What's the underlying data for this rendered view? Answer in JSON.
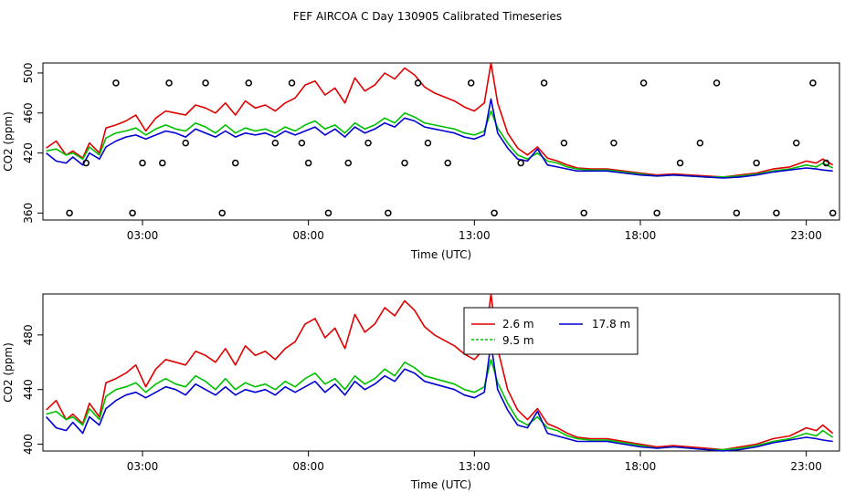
{
  "title": "FEF AIRCOA C  Day 130905  Calibrated Timeseries",
  "chart_data": [
    {
      "type": "line",
      "xlabel": "Time (UTC)",
      "ylabel": "CO2 (ppm)",
      "xlim": [
        0,
        24
      ],
      "ylim": [
        353,
        510
      ],
      "x_ticks": [
        3,
        8,
        13,
        18,
        23
      ],
      "x_tick_labels": [
        "03:00",
        "08:00",
        "13:00",
        "18:00",
        "23:00"
      ],
      "y_ticks": [
        360,
        420,
        460,
        500
      ],
      "y_tick_labels": [
        "360",
        "420",
        "460",
        "500"
      ],
      "grid": false,
      "legend": "none",
      "series": [
        {
          "color": "#e00000",
          "x": [
            0.1,
            0.4,
            0.7,
            0.9,
            1.2,
            1.4,
            1.7,
            1.9,
            2.2,
            2.5,
            2.8,
            3.1,
            3.4,
            3.7,
            4.0,
            4.3,
            4.6,
            4.9,
            5.2,
            5.5,
            5.8,
            6.1,
            6.4,
            6.7,
            7.0,
            7.3,
            7.6,
            7.9,
            8.2,
            8.5,
            8.8,
            9.1,
            9.4,
            9.7,
            10.0,
            10.3,
            10.6,
            10.9,
            11.2,
            11.5,
            11.8,
            12.1,
            12.4,
            12.7,
            13.0,
            13.3,
            13.5,
            13.7,
            14.0,
            14.3,
            14.6,
            14.9,
            15.2,
            15.5,
            15.8,
            16.1,
            16.5,
            17.0,
            17.5,
            18.0,
            18.5,
            19.0,
            19.5,
            20.0,
            20.5,
            21.0,
            21.5,
            22.0,
            22.5,
            23.0,
            23.3,
            23.5,
            23.8
          ],
          "y": [
            425,
            432,
            418,
            422,
            415,
            430,
            420,
            445,
            448,
            452,
            458,
            442,
            455,
            462,
            460,
            458,
            468,
            465,
            460,
            470,
            458,
            472,
            465,
            468,
            462,
            470,
            475,
            488,
            492,
            478,
            485,
            470,
            495,
            482,
            488,
            500,
            494,
            505,
            498,
            486,
            480,
            476,
            472,
            466,
            462,
            470,
            510,
            470,
            440,
            425,
            418,
            426,
            415,
            412,
            408,
            405,
            404,
            404,
            402,
            400,
            398,
            399,
            398,
            397,
            396,
            398,
            400,
            404,
            406,
            412,
            410,
            414,
            408
          ]
        },
        {
          "color": "#00c000",
          "x": [
            0.1,
            0.4,
            0.7,
            0.9,
            1.2,
            1.4,
            1.7,
            1.9,
            2.2,
            2.5,
            2.8,
            3.1,
            3.4,
            3.7,
            4.0,
            4.3,
            4.6,
            4.9,
            5.2,
            5.5,
            5.8,
            6.1,
            6.4,
            6.7,
            7.0,
            7.3,
            7.6,
            7.9,
            8.2,
            8.5,
            8.8,
            9.1,
            9.4,
            9.7,
            10.0,
            10.3,
            10.6,
            10.9,
            11.2,
            11.5,
            11.8,
            12.1,
            12.4,
            12.7,
            13.0,
            13.3,
            13.5,
            13.7,
            14.0,
            14.3,
            14.6,
            14.9,
            15.2,
            15.5,
            15.8,
            16.1,
            16.5,
            17.0,
            17.5,
            18.0,
            18.5,
            19.0,
            19.5,
            20.0,
            20.5,
            21.0,
            21.5,
            22.0,
            22.5,
            23.0,
            23.3,
            23.5,
            23.8
          ],
          "y": [
            422,
            424,
            418,
            420,
            414,
            426,
            418,
            435,
            440,
            442,
            445,
            438,
            444,
            448,
            444,
            442,
            450,
            446,
            440,
            448,
            440,
            445,
            442,
            444,
            440,
            446,
            442,
            448,
            452,
            444,
            448,
            440,
            450,
            444,
            448,
            455,
            450,
            460,
            456,
            450,
            448,
            446,
            444,
            440,
            438,
            442,
            462,
            445,
            430,
            418,
            414,
            420,
            412,
            410,
            406,
            404,
            403,
            403,
            401,
            399,
            397,
            398,
            397,
            396,
            396,
            397,
            399,
            402,
            404,
            408,
            406,
            410,
            405
          ]
        },
        {
          "color": "#0000d0",
          "x": [
            0.1,
            0.4,
            0.7,
            0.9,
            1.2,
            1.4,
            1.7,
            1.9,
            2.2,
            2.5,
            2.8,
            3.1,
            3.4,
            3.7,
            4.0,
            4.3,
            4.6,
            4.9,
            5.2,
            5.5,
            5.8,
            6.1,
            6.4,
            6.7,
            7.0,
            7.3,
            7.6,
            7.9,
            8.2,
            8.5,
            8.8,
            9.1,
            9.4,
            9.7,
            10.0,
            10.3,
            10.6,
            10.9,
            11.2,
            11.5,
            11.8,
            12.1,
            12.4,
            12.7,
            13.0,
            13.3,
            13.5,
            13.7,
            14.0,
            14.3,
            14.6,
            14.9,
            15.2,
            15.5,
            15.8,
            16.1,
            16.5,
            17.0,
            17.5,
            18.0,
            18.5,
            19.0,
            19.5,
            20.0,
            20.5,
            21.0,
            21.5,
            22.0,
            22.5,
            23.0,
            23.3,
            23.5,
            23.8
          ],
          "y": [
            420,
            412,
            410,
            416,
            408,
            420,
            414,
            426,
            432,
            436,
            438,
            434,
            438,
            442,
            440,
            436,
            444,
            440,
            436,
            442,
            436,
            440,
            438,
            440,
            436,
            442,
            438,
            442,
            446,
            438,
            444,
            436,
            446,
            440,
            444,
            450,
            446,
            455,
            452,
            446,
            444,
            442,
            440,
            436,
            434,
            438,
            474,
            440,
            425,
            414,
            412,
            424,
            408,
            406,
            404,
            402,
            402,
            402,
            400,
            398,
            397,
            398,
            397,
            396,
            395,
            396,
            398,
            401,
            403,
            405,
            404,
            403,
            402
          ]
        }
      ],
      "points": {
        "color": "#000000",
        "x": [
          0.8,
          1.3,
          2.2,
          2.7,
          3.0,
          3.6,
          3.8,
          4.3,
          4.9,
          5.4,
          5.8,
          6.2,
          7.0,
          7.5,
          7.8,
          8.0,
          8.6,
          9.2,
          9.8,
          10.4,
          10.9,
          11.3,
          11.6,
          12.2,
          12.9,
          13.6,
          14.4,
          15.1,
          15.7,
          16.3,
          17.2,
          18.1,
          18.5,
          19.2,
          19.8,
          20.3,
          20.9,
          21.5,
          22.1,
          22.7,
          23.2,
          23.6,
          23.8
        ],
        "y": [
          360,
          410,
          490,
          360,
          410,
          410,
          490,
          430,
          490,
          360,
          410,
          490,
          430,
          490,
          430,
          410,
          360,
          410,
          430,
          360,
          410,
          490,
          430,
          410,
          490,
          360,
          410,
          490,
          430,
          360,
          430,
          490,
          360,
          410,
          430,
          490,
          360,
          410,
          360,
          430,
          490,
          410,
          360
        ]
      }
    },
    {
      "type": "line",
      "xlabel": "Time (UTC)",
      "ylabel": "CO2 (ppm)",
      "xlim": [
        0,
        24
      ],
      "ylim": [
        395,
        510
      ],
      "x_ticks": [
        3,
        8,
        13,
        18,
        23
      ],
      "x_tick_labels": [
        "03:00",
        "08:00",
        "13:00",
        "18:00",
        "23:00"
      ],
      "y_ticks": [
        400,
        440,
        480
      ],
      "y_tick_labels": [
        "400",
        "440",
        "480"
      ],
      "grid": false,
      "legend": "inside, centered near 13:00–18:00",
      "series": [
        {
          "name": "2.6 m",
          "color": "#e00000",
          "x": [
            0.1,
            0.4,
            0.7,
            0.9,
            1.2,
            1.4,
            1.7,
            1.9,
            2.2,
            2.5,
            2.8,
            3.1,
            3.4,
            3.7,
            4.0,
            4.3,
            4.6,
            4.9,
            5.2,
            5.5,
            5.8,
            6.1,
            6.4,
            6.7,
            7.0,
            7.3,
            7.6,
            7.9,
            8.2,
            8.5,
            8.8,
            9.1,
            9.4,
            9.7,
            10.0,
            10.3,
            10.6,
            10.9,
            11.2,
            11.5,
            11.8,
            12.1,
            12.4,
            12.7,
            13.0,
            13.3,
            13.5,
            13.7,
            14.0,
            14.3,
            14.6,
            14.9,
            15.2,
            15.5,
            15.8,
            16.1,
            16.5,
            17.0,
            17.5,
            18.0,
            18.5,
            19.0,
            19.5,
            20.0,
            20.5,
            21.0,
            21.5,
            22.0,
            22.5,
            23.0,
            23.3,
            23.5,
            23.8
          ],
          "y": [
            425,
            432,
            418,
            422,
            415,
            430,
            420,
            445,
            448,
            452,
            458,
            442,
            455,
            462,
            460,
            458,
            468,
            465,
            460,
            470,
            458,
            472,
            465,
            468,
            462,
            470,
            475,
            488,
            492,
            478,
            485,
            470,
            495,
            482,
            488,
            500,
            494,
            505,
            498,
            486,
            480,
            476,
            472,
            466,
            462,
            470,
            510,
            470,
            440,
            425,
            418,
            426,
            415,
            412,
            408,
            405,
            404,
            404,
            402,
            400,
            398,
            399,
            398,
            397,
            396,
            398,
            400,
            404,
            406,
            412,
            410,
            414,
            408
          ]
        },
        {
          "name": "9.5 m",
          "color": "#00c000",
          "x": [
            0.1,
            0.4,
            0.7,
            0.9,
            1.2,
            1.4,
            1.7,
            1.9,
            2.2,
            2.5,
            2.8,
            3.1,
            3.4,
            3.7,
            4.0,
            4.3,
            4.6,
            4.9,
            5.2,
            5.5,
            5.8,
            6.1,
            6.4,
            6.7,
            7.0,
            7.3,
            7.6,
            7.9,
            8.2,
            8.5,
            8.8,
            9.1,
            9.4,
            9.7,
            10.0,
            10.3,
            10.6,
            10.9,
            11.2,
            11.5,
            11.8,
            12.1,
            12.4,
            12.7,
            13.0,
            13.3,
            13.5,
            13.7,
            14.0,
            14.3,
            14.6,
            14.9,
            15.2,
            15.5,
            15.8,
            16.1,
            16.5,
            17.0,
            17.5,
            18.0,
            18.5,
            19.0,
            19.5,
            20.0,
            20.5,
            21.0,
            21.5,
            22.0,
            22.5,
            23.0,
            23.3,
            23.5,
            23.8
          ],
          "y": [
            422,
            424,
            418,
            420,
            414,
            426,
            418,
            435,
            440,
            442,
            445,
            438,
            444,
            448,
            444,
            442,
            450,
            446,
            440,
            448,
            440,
            445,
            442,
            444,
            440,
            446,
            442,
            448,
            452,
            444,
            448,
            440,
            450,
            444,
            448,
            455,
            450,
            460,
            456,
            450,
            448,
            446,
            444,
            440,
            438,
            442,
            462,
            445,
            430,
            418,
            414,
            420,
            412,
            410,
            406,
            404,
            403,
            403,
            401,
            399,
            397,
            398,
            397,
            396,
            396,
            397,
            399,
            402,
            404,
            408,
            406,
            410,
            405
          ]
        },
        {
          "name": "17.8 m",
          "color": "#0000d0",
          "x": [
            0.1,
            0.4,
            0.7,
            0.9,
            1.2,
            1.4,
            1.7,
            1.9,
            2.2,
            2.5,
            2.8,
            3.1,
            3.4,
            3.7,
            4.0,
            4.3,
            4.6,
            4.9,
            5.2,
            5.5,
            5.8,
            6.1,
            6.4,
            6.7,
            7.0,
            7.3,
            7.6,
            7.9,
            8.2,
            8.5,
            8.8,
            9.1,
            9.4,
            9.7,
            10.0,
            10.3,
            10.6,
            10.9,
            11.2,
            11.5,
            11.8,
            12.1,
            12.4,
            12.7,
            13.0,
            13.3,
            13.5,
            13.7,
            14.0,
            14.3,
            14.6,
            14.9,
            15.2,
            15.5,
            15.8,
            16.1,
            16.5,
            17.0,
            17.5,
            18.0,
            18.5,
            19.0,
            19.5,
            20.0,
            20.5,
            21.0,
            21.5,
            22.0,
            22.5,
            23.0,
            23.3,
            23.5,
            23.8
          ],
          "y": [
            420,
            412,
            410,
            416,
            408,
            420,
            414,
            426,
            432,
            436,
            438,
            434,
            438,
            442,
            440,
            436,
            444,
            440,
            436,
            442,
            436,
            440,
            438,
            440,
            436,
            442,
            438,
            442,
            446,
            438,
            444,
            436,
            446,
            440,
            444,
            450,
            446,
            455,
            452,
            446,
            444,
            442,
            440,
            436,
            434,
            438,
            474,
            440,
            425,
            414,
            412,
            424,
            408,
            406,
            404,
            402,
            402,
            402,
            400,
            398,
            397,
            398,
            397,
            396,
            395,
            396,
            398,
            401,
            403,
            405,
            404,
            403,
            402
          ]
        }
      ]
    }
  ]
}
